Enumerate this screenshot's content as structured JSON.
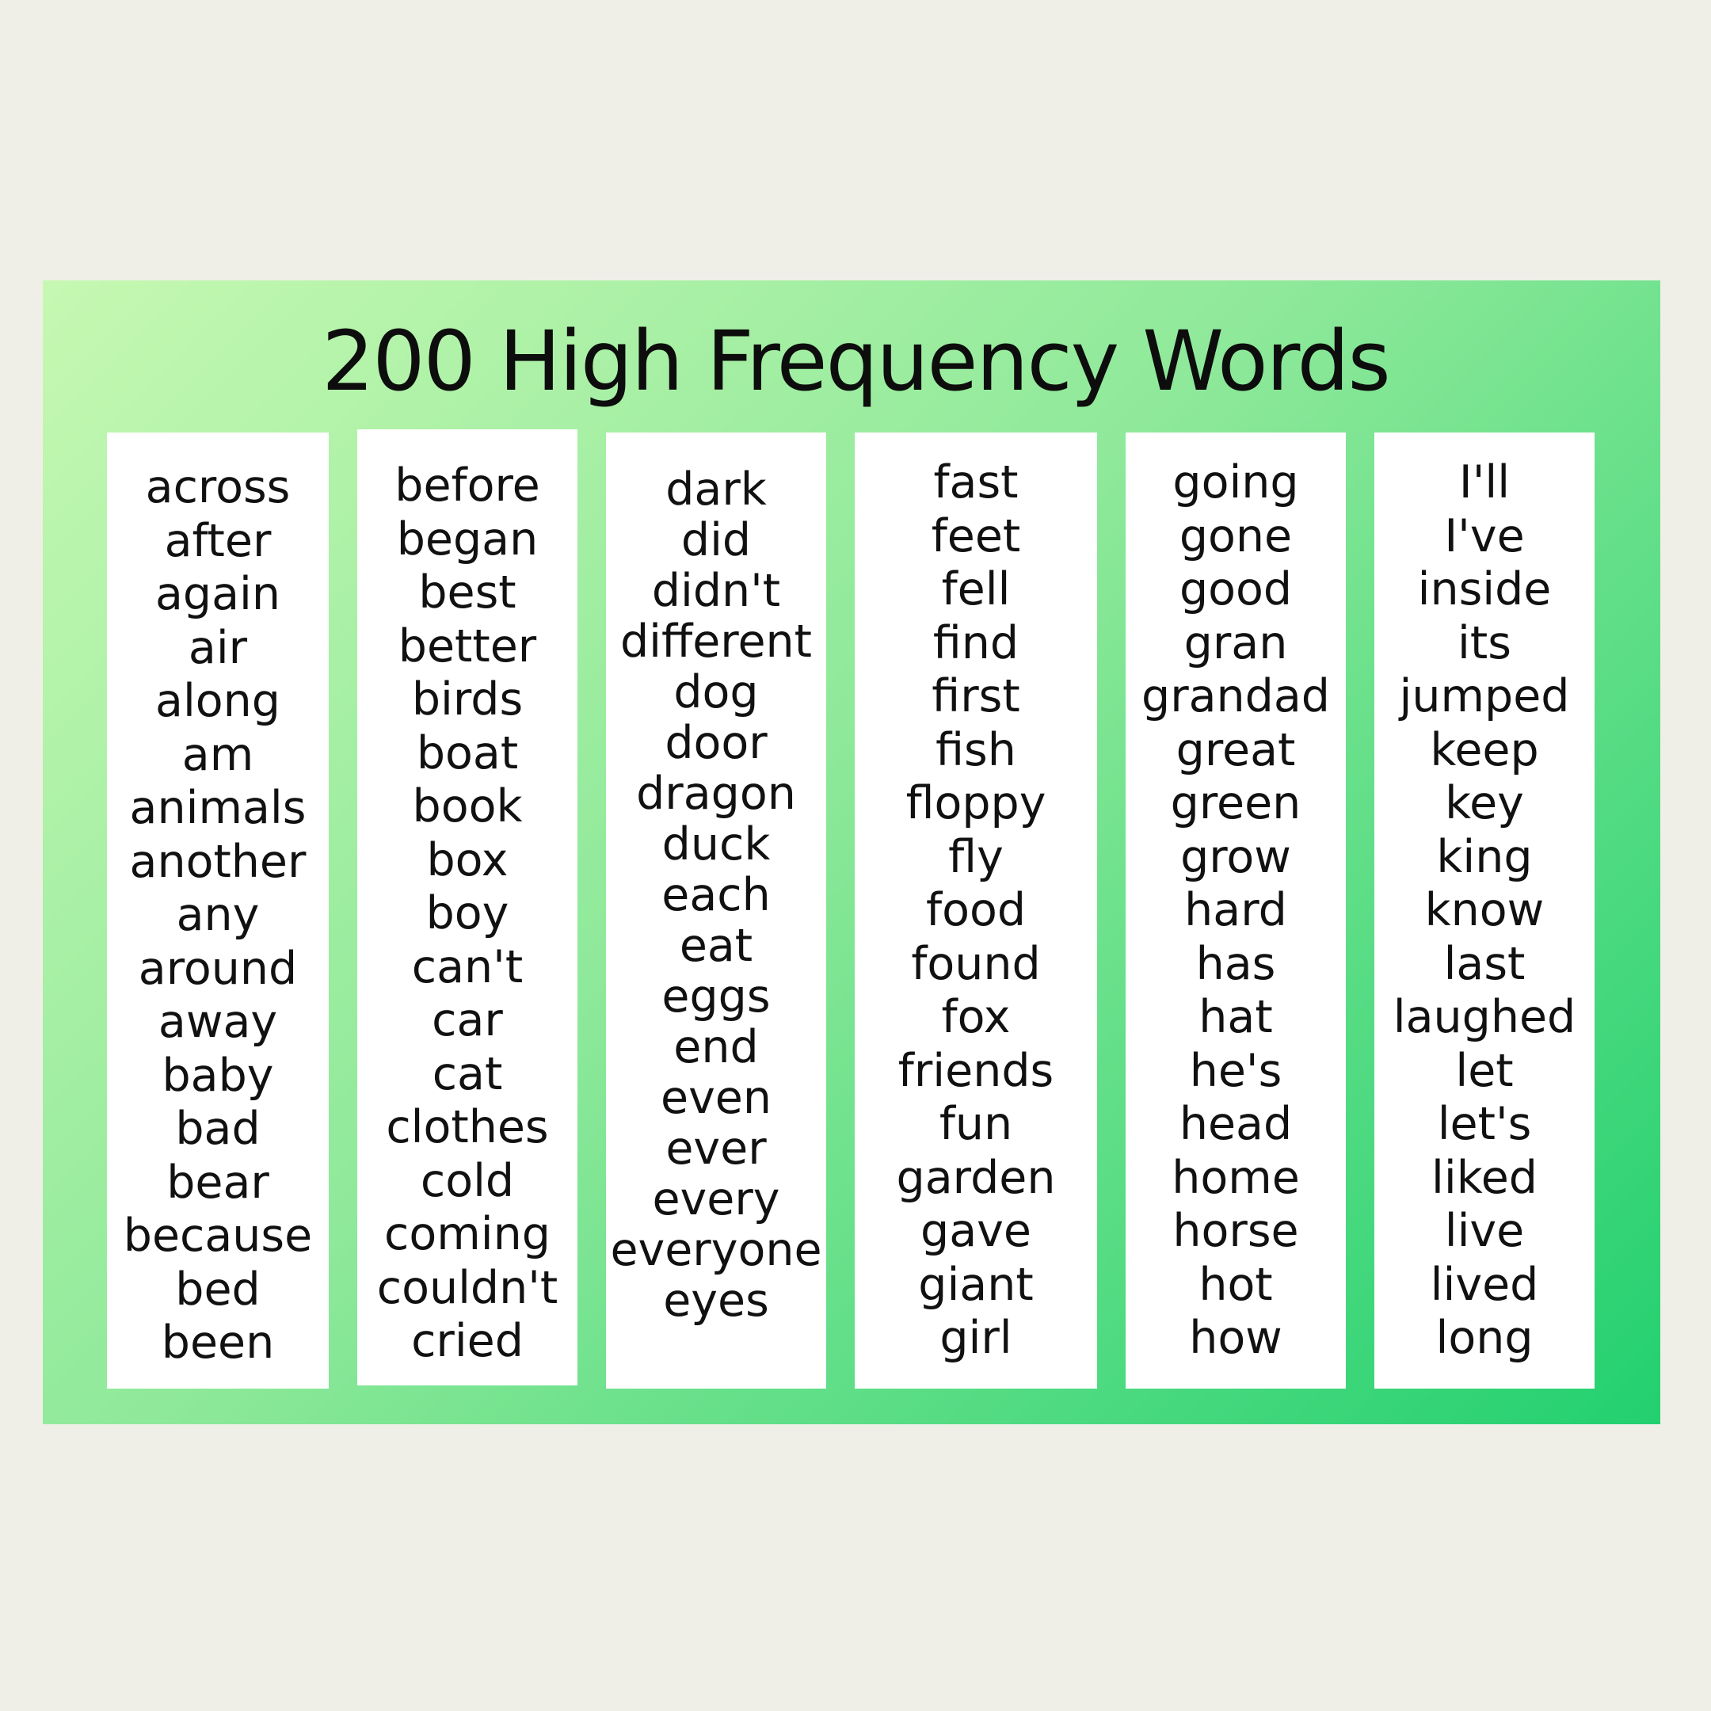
{
  "title": "200 High Frequency Words",
  "colors": {
    "background": "#f0efe7",
    "panel_gradient_start": "#c6f8b2",
    "panel_gradient_end": "#22d06f",
    "card": "#ffffff",
    "text": "#111111"
  },
  "columns": [
    {
      "words": [
        "across",
        "after",
        "again",
        "air",
        "along",
        "am",
        "animals",
        "another",
        "any",
        "around",
        "away",
        "baby",
        "bad",
        "bear",
        "because",
        "bed",
        "been"
      ]
    },
    {
      "words": [
        "before",
        "began",
        "best",
        "better",
        "birds",
        "boat",
        "book",
        "box",
        "boy",
        "can't",
        "car",
        "cat",
        "clothes",
        "cold",
        "coming",
        "couldn't",
        "cried"
      ]
    },
    {
      "words": [
        "dark",
        "did",
        "didn't",
        "different",
        "dog",
        "door",
        "dragon",
        "duck",
        "each",
        "eat",
        "eggs",
        "end",
        "even",
        "ever",
        "every",
        "everyone",
        "eyes"
      ]
    },
    {
      "words": [
        "fast",
        "feet",
        "fell",
        "find",
        "first",
        "fish",
        "floppy",
        "fly",
        "food",
        "found",
        "fox",
        "friends",
        "fun",
        "garden",
        "gave",
        "giant",
        "girl"
      ]
    },
    {
      "words": [
        "going",
        "gone",
        "good",
        "gran",
        "grandad",
        "great",
        "green",
        "grow",
        "hard",
        "has",
        "hat",
        "he's",
        "head",
        "home",
        "horse",
        "hot",
        "how"
      ]
    },
    {
      "words": [
        "I'll",
        "I've",
        "inside",
        "its",
        "jumped",
        "keep",
        "key",
        "king",
        "know",
        "last",
        "laughed",
        "let",
        "let's",
        "liked",
        "live",
        "lived",
        "long"
      ]
    }
  ]
}
